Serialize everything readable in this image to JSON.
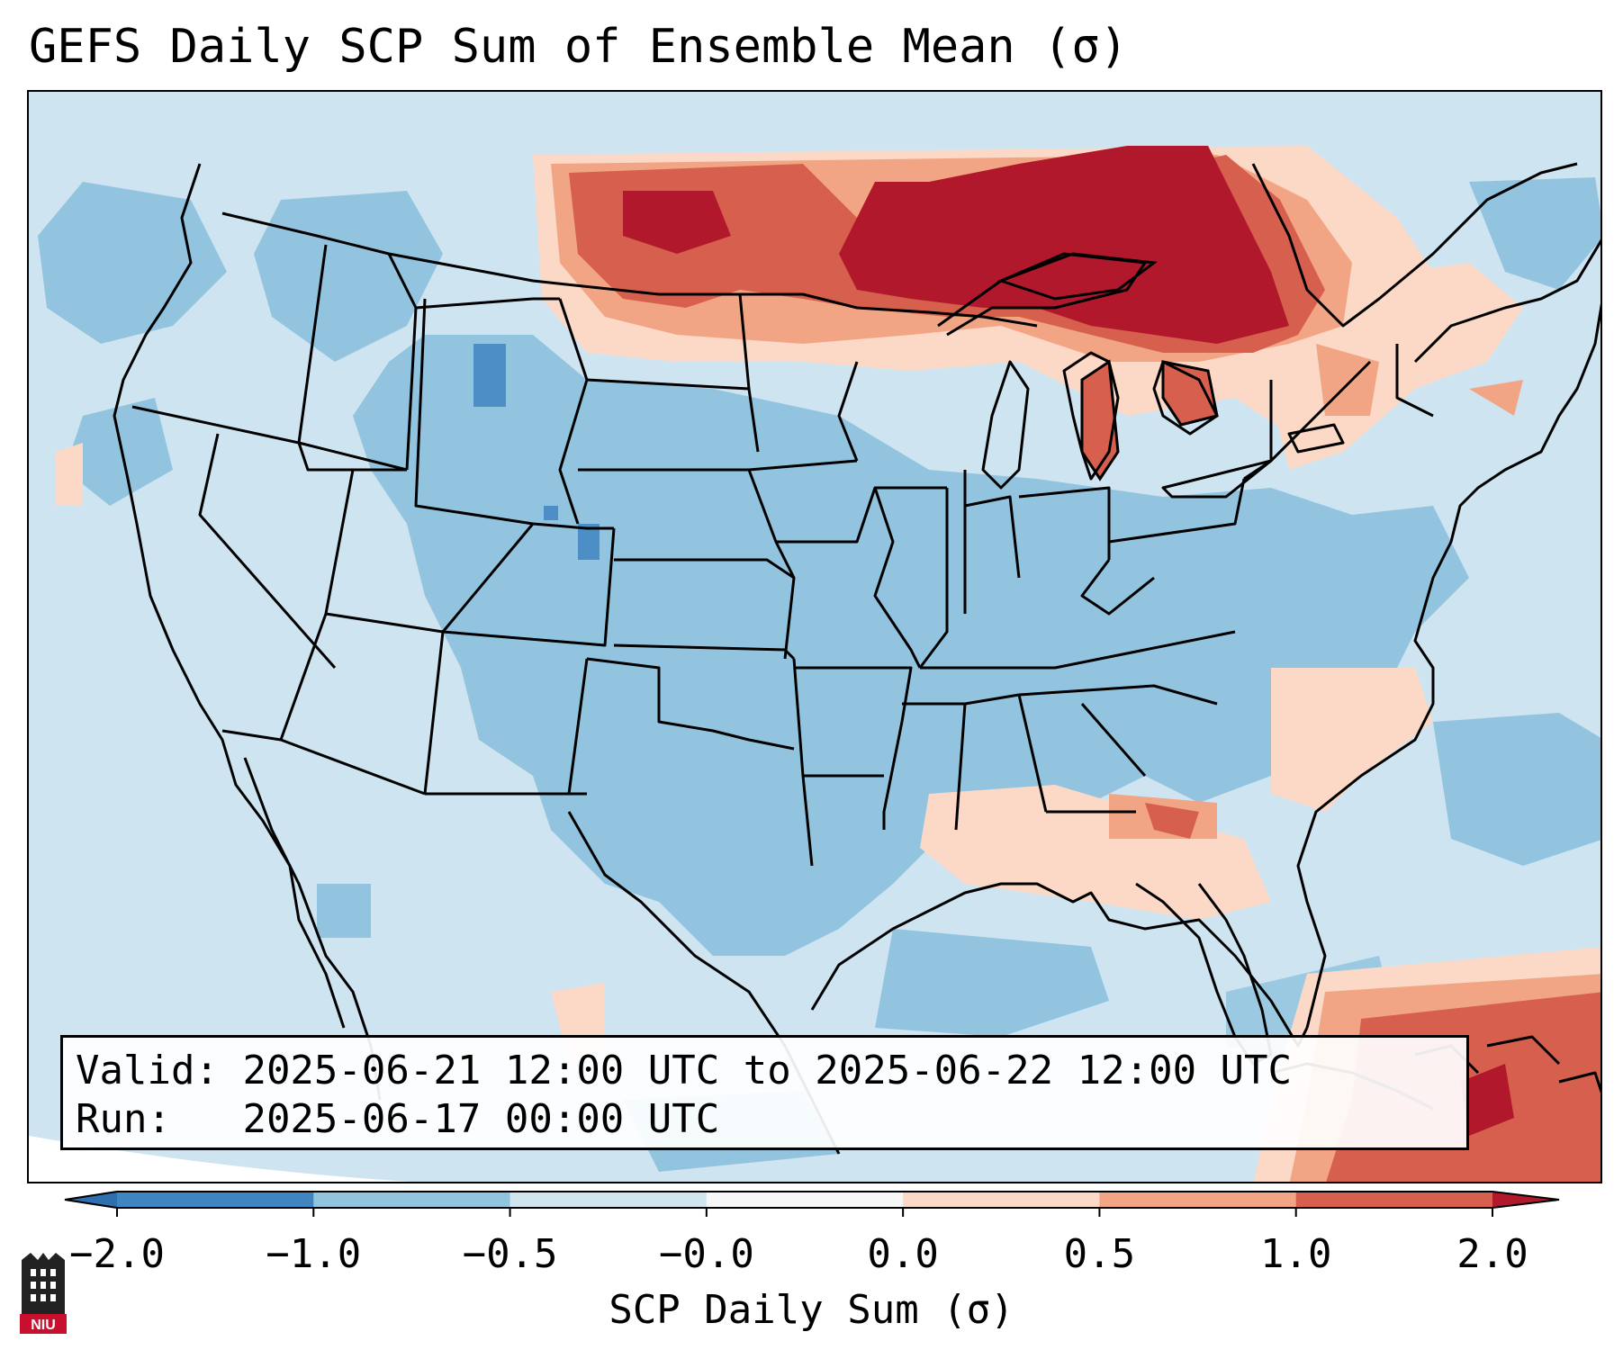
{
  "title": "GEFS Daily SCP Sum of Ensemble Mean (σ)",
  "info": {
    "valid_label": "Valid:",
    "valid_value": "2025-06-21 12:00 UTC to 2025-06-22 12:00 UTC",
    "run_label": "Run:",
    "run_value": "2025-06-17 00:00 UTC"
  },
  "colorbar": {
    "label": "SCP Daily Sum (σ)",
    "ticks": [
      "−2.0",
      "−1.0",
      "−0.5",
      "−0.0",
      "0.0",
      "0.5",
      "1.0",
      "2.0"
    ],
    "bins": [
      {
        "range": "< -2.0",
        "color": "#2e6fb0"
      },
      {
        "range": "-2.0 to -1.0",
        "color": "#3f86c0"
      },
      {
        "range": "-1.0 to -0.5",
        "color": "#92c4df"
      },
      {
        "range": "-0.5 to -0.0",
        "color": "#d1e5f0"
      },
      {
        "range": "-0.0 to 0.0",
        "color": "#f7f7f7"
      },
      {
        "range": "0.0 to 0.5",
        "color": "#fbd9c6"
      },
      {
        "range": "0.5 to 1.0",
        "color": "#f2a584"
      },
      {
        "range": "1.0 to 2.0",
        "color": "#d6604d"
      },
      {
        "range": "> 2.0",
        "color": "#b2182b"
      }
    ]
  },
  "logo": {
    "text": "NIU",
    "color": "#c8102e"
  },
  "map": {
    "background_color": "#cfe4f1",
    "regions": [
      {
        "name": "northern-plains-great-lakes-anomaly",
        "level": 2.0
      },
      {
        "name": "canadian-prairies-anomaly",
        "level": 1.0
      },
      {
        "name": "central-us-negative",
        "level": -0.75
      },
      {
        "name": "southeast-gulf-positive",
        "level": 0.5
      },
      {
        "name": "caribbean-positive",
        "level": 1.0
      }
    ]
  }
}
